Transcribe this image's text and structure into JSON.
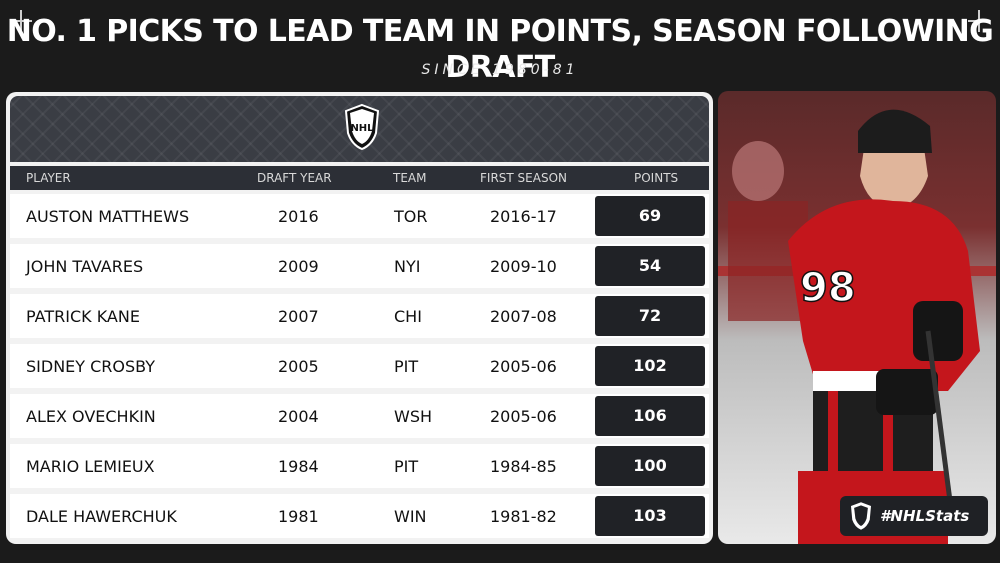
{
  "header": {
    "title": "NO. 1 PICKS TO LEAD TEAM IN POINTS, SEASON FOLLOWING DRAFT",
    "subtitle": "SINCE 1980-81"
  },
  "table": {
    "columns": {
      "player": "PLAYER",
      "draft_year": "DRAFT YEAR",
      "team": "TEAM",
      "first_season": "FIRST SEASON",
      "points": "POINTS"
    },
    "rows": [
      {
        "player": "AUSTON MATTHEWS",
        "draft_year": "2016",
        "team": "TOR",
        "first_season": "2016-17",
        "points": "69"
      },
      {
        "player": "JOHN TAVARES",
        "draft_year": "2009",
        "team": "NYI",
        "first_season": "2009-10",
        "points": "54"
      },
      {
        "player": "PATRICK KANE",
        "draft_year": "2007",
        "team": "CHI",
        "first_season": "2007-08",
        "points": "72"
      },
      {
        "player": "SIDNEY CROSBY",
        "draft_year": "2005",
        "team": "PIT",
        "first_season": "2005-06",
        "points": "102"
      },
      {
        "player": "ALEX OVECHKIN",
        "draft_year": "2004",
        "team": "WSH",
        "first_season": "2005-06",
        "points": "106"
      },
      {
        "player": "MARIO LEMIEUX",
        "draft_year": "1984",
        "team": "PIT",
        "first_season": "1984-85",
        "points": "100"
      },
      {
        "player": "DALE HAWERCHUK",
        "draft_year": "1981",
        "team": "WIN",
        "first_season": "1981-82",
        "points": "103"
      }
    ]
  },
  "badge": {
    "text": "#NHLStats"
  },
  "logo": {
    "text": "NHL"
  },
  "colors": {
    "background": "#1b1b1b",
    "points_cell": "#202226",
    "header_band": "#2c2f36"
  }
}
